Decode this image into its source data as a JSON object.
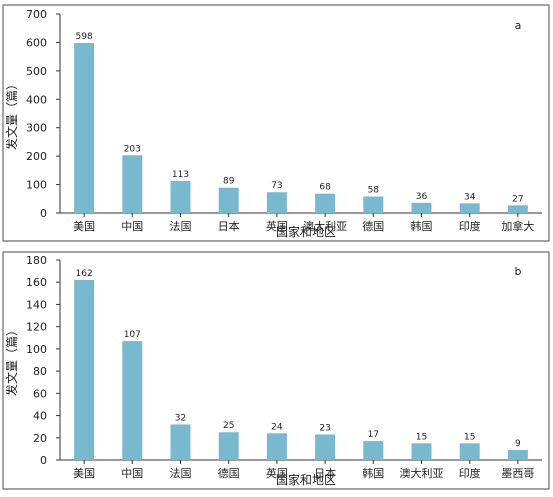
{
  "chart_data": [
    {
      "type": "bar",
      "panel_label": "a",
      "ylabel": "发文量（篇）",
      "xlabel": "国家和地区",
      "ylim": [
        0,
        700
      ],
      "yticks": [
        0,
        100,
        200,
        300,
        400,
        500,
        600,
        700
      ],
      "categories": [
        "美国",
        "中国",
        "法国",
        "日本",
        "英国",
        "澳大利亚",
        "德国",
        "韩国",
        "印度",
        "加拿大"
      ],
      "values": [
        598,
        203,
        113,
        89,
        73,
        68,
        58,
        36,
        34,
        27
      ],
      "bar_color": "#79b9cf",
      "grid": false
    },
    {
      "type": "bar",
      "panel_label": "b",
      "ylabel": "发文量（篇）",
      "xlabel": "国家和地区",
      "ylim": [
        0,
        180
      ],
      "yticks": [
        0,
        20,
        40,
        60,
        80,
        100,
        120,
        140,
        160,
        180
      ],
      "categories": [
        "美国",
        "中国",
        "法国",
        "德国",
        "英国",
        "日本",
        "韩国",
        "澳大利亚",
        "印度",
        "墨西哥"
      ],
      "values": [
        162,
        107,
        32,
        25,
        24,
        23,
        17,
        15,
        15,
        9
      ],
      "bar_color": "#79b9cf",
      "grid": false
    }
  ]
}
